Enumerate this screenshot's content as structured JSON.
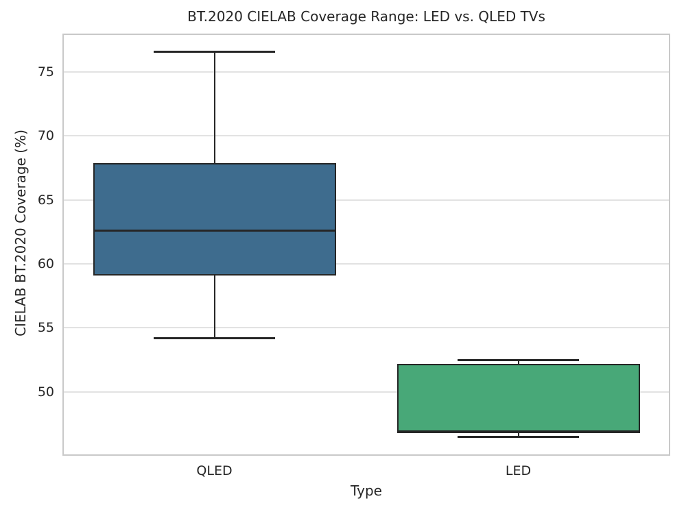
{
  "chart_data": {
    "type": "boxplot",
    "title": "BT.2020 CIELAB Coverage Range: LED vs. QLED TVs",
    "xlabel": "Type",
    "ylabel": "CIELAB BT.2020 Coverage (%)",
    "ylim": [
      45,
      78
    ],
    "yticks": [
      50,
      55,
      60,
      65,
      70,
      75
    ],
    "grid": "horizontal-only",
    "legend": "none",
    "categories": [
      "QLED",
      "LED"
    ],
    "series": [
      {
        "name": "QLED",
        "whisker_low": 54.2,
        "q1": 59.1,
        "median": 62.6,
        "q3": 67.9,
        "whisker_high": 76.6,
        "outliers": [],
        "fill_color": "#3E6C8E"
      },
      {
        "name": "LED",
        "whisker_low": 46.5,
        "q1": 46.9,
        "median": 46.9,
        "q3": 52.2,
        "whisker_high": 52.5,
        "outliers": [],
        "fill_color": "#48A878"
      }
    ],
    "colors": {
      "box_edge": "#262626",
      "whisker": "#262626",
      "median": "#262626",
      "grid": "#E2E2E2",
      "spine": "#C9C9C9",
      "text": "#262626",
      "background": "#FFFFFF"
    }
  }
}
